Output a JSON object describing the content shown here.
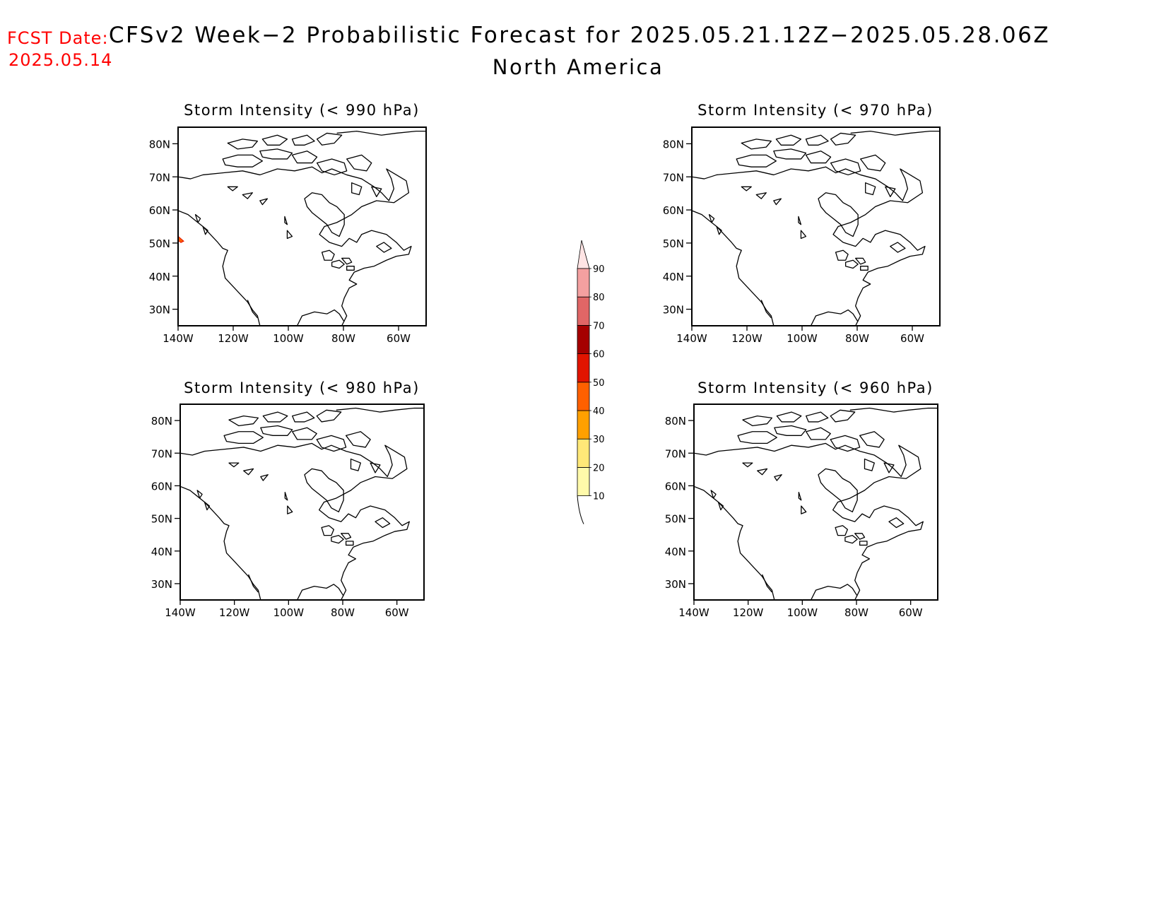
{
  "forecast": {
    "date_label": "FCST Date:",
    "date_value": "2025.05.14",
    "title": "CFSv2 Week−2 Probabilistic Forecast for 2025.05.21.12Z−2025.05.28.06Z",
    "subtitle": "North America"
  },
  "panels": [
    {
      "title": "Storm Intensity (< 990 hPa)",
      "has_signal": true
    },
    {
      "title": "Storm Intensity (< 970 hPa)",
      "has_signal": false
    },
    {
      "title": "Storm Intensity (< 980 hPa)",
      "has_signal": false
    },
    {
      "title": "Storm Intensity (< 960 hPa)",
      "has_signal": false
    }
  ],
  "axes": {
    "lat_labels": [
      "80N",
      "70N",
      "60N",
      "50N",
      "40N",
      "30N"
    ],
    "lon_labels": [
      "140W",
      "120W",
      "100W",
      "80W",
      "60W"
    ],
    "lon_range": [
      -140,
      -50
    ],
    "lat_range": [
      25,
      85
    ]
  },
  "colorbar": {
    "labels": [
      "10",
      "20",
      "30",
      "40",
      "50",
      "60",
      "70",
      "80",
      "90"
    ],
    "colors": [
      "#fffaaa",
      "#ffe878",
      "#ffa000",
      "#ff6000",
      "#e11400",
      "#a50000",
      "#e06666",
      "#f4a0a0",
      "#ffe4e4"
    ]
  },
  "colors": {
    "date_text": "#ff0000",
    "signal": "#ff6000"
  }
}
